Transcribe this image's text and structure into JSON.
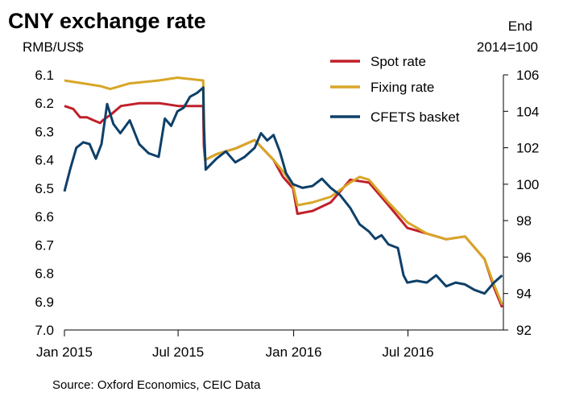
{
  "colors": {
    "spot": "#c0202a",
    "fixing": "#d8a628",
    "cfets": "#0e4069"
  },
  "chart_data": {
    "type": "line",
    "title": "CNY exchange rate",
    "ylabel_left": "RMB/US$",
    "ylabel_right": "End 2014=100",
    "ylabel_right_lines": [
      "End",
      "2014=100"
    ],
    "source": "Source: Oxford Economics, CEIC Data",
    "x_ticks": [
      "Jan 2015",
      "Jul 2015",
      "Jan 2016",
      "Jul 2016"
    ],
    "xlim": [
      "2015-01-01",
      "2016-11-30"
    ],
    "ylim_left": [
      6.1,
      7.0
    ],
    "left_axis_inverted": true,
    "y_ticks_left": [
      "6.1",
      "6.2",
      "6.3",
      "6.4",
      "6.5",
      "6.6",
      "6.7",
      "6.8",
      "6.9",
      "7.0"
    ],
    "ylim_right": [
      92,
      106
    ],
    "y_ticks_right": [
      "106",
      "104",
      "102",
      "100",
      "98",
      "96",
      "94",
      "92"
    ],
    "legend_position": "top-right",
    "series": [
      {
        "name": "Spot rate",
        "axis": "left",
        "points": [
          [
            "2015-01-01",
            6.21
          ],
          [
            "2015-01-15",
            6.22
          ],
          [
            "2015-01-26",
            6.25
          ],
          [
            "2015-02-06",
            6.25
          ],
          [
            "2015-02-16",
            6.26
          ],
          [
            "2015-02-27",
            6.27
          ],
          [
            "2015-03-03",
            6.26
          ],
          [
            "2015-03-16",
            6.24
          ],
          [
            "2015-04-01",
            6.21
          ],
          [
            "2015-05-01",
            6.2
          ],
          [
            "2015-06-01",
            6.2
          ],
          [
            "2015-07-01",
            6.21
          ],
          [
            "2015-08-10",
            6.21
          ],
          [
            "2015-08-11",
            6.35
          ],
          [
            "2015-08-13",
            6.4
          ],
          [
            "2015-08-31",
            6.38
          ],
          [
            "2015-09-30",
            6.36
          ],
          [
            "2015-10-31",
            6.33
          ],
          [
            "2015-11-30",
            6.4
          ],
          [
            "2015-12-15",
            6.46
          ],
          [
            "2015-12-31",
            6.5
          ],
          [
            "2016-01-07",
            6.59
          ],
          [
            "2016-01-31",
            6.58
          ],
          [
            "2016-02-29",
            6.55
          ],
          [
            "2016-03-31",
            6.47
          ],
          [
            "2016-04-30",
            6.48
          ],
          [
            "2016-05-31",
            6.56
          ],
          [
            "2016-06-30",
            6.64
          ],
          [
            "2016-07-31",
            6.66
          ],
          [
            "2016-08-31",
            6.68
          ],
          [
            "2016-09-30",
            6.67
          ],
          [
            "2016-10-31",
            6.75
          ],
          [
            "2016-11-15",
            6.85
          ],
          [
            "2016-11-28",
            6.92
          ]
        ]
      },
      {
        "name": "Fixing rate",
        "axis": "left",
        "points": [
          [
            "2015-01-01",
            6.12
          ],
          [
            "2015-01-31",
            6.13
          ],
          [
            "2015-02-28",
            6.14
          ],
          [
            "2015-03-15",
            6.15
          ],
          [
            "2015-04-15",
            6.13
          ],
          [
            "2015-05-31",
            6.12
          ],
          [
            "2015-06-30",
            6.11
          ],
          [
            "2015-08-10",
            6.12
          ],
          [
            "2015-08-11",
            6.22
          ],
          [
            "2015-08-12",
            6.33
          ],
          [
            "2015-08-13",
            6.4
          ],
          [
            "2015-08-31",
            6.38
          ],
          [
            "2015-09-30",
            6.36
          ],
          [
            "2015-10-31",
            6.33
          ],
          [
            "2015-11-30",
            6.4
          ],
          [
            "2015-12-15",
            6.44
          ],
          [
            "2015-12-31",
            6.49
          ],
          [
            "2016-01-07",
            6.56
          ],
          [
            "2016-01-31",
            6.55
          ],
          [
            "2016-02-29",
            6.53
          ],
          [
            "2016-03-31",
            6.48
          ],
          [
            "2016-04-15",
            6.46
          ],
          [
            "2016-04-30",
            6.47
          ],
          [
            "2016-05-31",
            6.55
          ],
          [
            "2016-06-30",
            6.62
          ],
          [
            "2016-07-31",
            6.66
          ],
          [
            "2016-08-31",
            6.68
          ],
          [
            "2016-09-30",
            6.67
          ],
          [
            "2016-10-31",
            6.75
          ],
          [
            "2016-11-15",
            6.84
          ],
          [
            "2016-11-28",
            6.91
          ]
        ]
      },
      {
        "name": "CFETS basket",
        "axis": "right",
        "points": [
          [
            "2015-01-01",
            99.6
          ],
          [
            "2015-01-10",
            100.8
          ],
          [
            "2015-01-20",
            102.0
          ],
          [
            "2015-01-31",
            102.3
          ],
          [
            "2015-02-10",
            102.2
          ],
          [
            "2015-02-20",
            101.4
          ],
          [
            "2015-03-01",
            102.2
          ],
          [
            "2015-03-10",
            104.4
          ],
          [
            "2015-03-20",
            103.3
          ],
          [
            "2015-03-31",
            102.8
          ],
          [
            "2015-04-15",
            103.5
          ],
          [
            "2015-04-30",
            102.2
          ],
          [
            "2015-05-15",
            101.7
          ],
          [
            "2015-05-31",
            101.5
          ],
          [
            "2015-06-10",
            103.6
          ],
          [
            "2015-06-20",
            103.2
          ],
          [
            "2015-06-30",
            104.0
          ],
          [
            "2015-07-10",
            104.2
          ],
          [
            "2015-07-20",
            104.8
          ],
          [
            "2015-07-31",
            105.0
          ],
          [
            "2015-08-10",
            105.3
          ],
          [
            "2015-08-11",
            103.2
          ],
          [
            "2015-08-14",
            100.8
          ],
          [
            "2015-08-31",
            101.4
          ],
          [
            "2015-09-15",
            101.8
          ],
          [
            "2015-09-30",
            101.2
          ],
          [
            "2015-10-15",
            101.5
          ],
          [
            "2015-10-31",
            102.0
          ],
          [
            "2015-11-10",
            102.8
          ],
          [
            "2015-11-20",
            102.4
          ],
          [
            "2015-11-30",
            102.7
          ],
          [
            "2015-12-10",
            101.8
          ],
          [
            "2015-12-20",
            100.6
          ],
          [
            "2015-12-31",
            100.0
          ],
          [
            "2016-01-15",
            99.8
          ],
          [
            "2016-01-31",
            99.9
          ],
          [
            "2016-02-15",
            100.3
          ],
          [
            "2016-02-29",
            99.8
          ],
          [
            "2016-03-15",
            99.4
          ],
          [
            "2016-03-31",
            98.7
          ],
          [
            "2016-04-15",
            97.8
          ],
          [
            "2016-04-30",
            97.4
          ],
          [
            "2016-05-10",
            97.0
          ],
          [
            "2016-05-20",
            97.2
          ],
          [
            "2016-05-31",
            96.7
          ],
          [
            "2016-06-15",
            96.5
          ],
          [
            "2016-06-24",
            95.0
          ],
          [
            "2016-06-30",
            94.6
          ],
          [
            "2016-07-15",
            94.7
          ],
          [
            "2016-07-31",
            94.6
          ],
          [
            "2016-08-15",
            95.0
          ],
          [
            "2016-08-31",
            94.4
          ],
          [
            "2016-09-15",
            94.6
          ],
          [
            "2016-09-30",
            94.5
          ],
          [
            "2016-10-15",
            94.2
          ],
          [
            "2016-10-31",
            94.0
          ],
          [
            "2016-11-15",
            94.6
          ],
          [
            "2016-11-28",
            95.0
          ]
        ]
      }
    ]
  }
}
